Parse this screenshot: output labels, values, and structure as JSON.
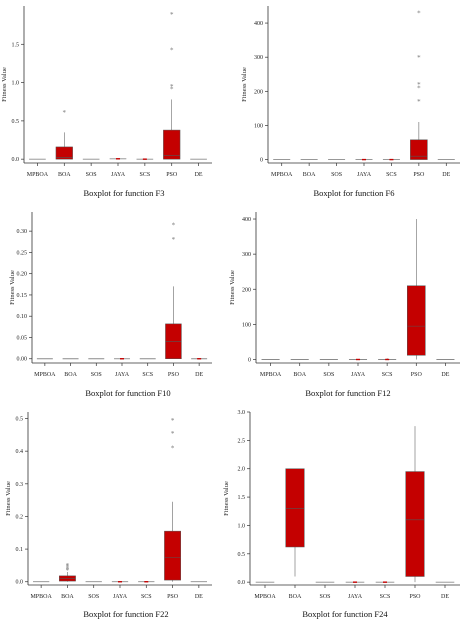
{
  "figure": {
    "categories": [
      "MPBOA",
      "BOA",
      "SOS",
      "JAYA",
      "SCS",
      "PSO",
      "DE"
    ],
    "box_color": "#c40000",
    "outlier_marker": "*"
  },
  "chart_data": [
    {
      "type": "boxplot",
      "caption": "Boxplot for function F3",
      "ylabel": "Fitness Value",
      "ylim": [
        -0.05,
        2.0
      ],
      "yticks": [
        "0.0",
        "0.5",
        "1.0",
        "1.5"
      ],
      "ytick_values": [
        0,
        0.5,
        1.0,
        1.5
      ],
      "categories": [
        "MPBOA",
        "BOA",
        "SOS",
        "JAYA",
        "SCS",
        "PSO",
        "DE"
      ],
      "boxes": [
        {
          "q1": 0,
          "median": 0,
          "q3": 0,
          "whislo": 0,
          "whishi": 0,
          "fliers": []
        },
        {
          "q1": 0.0,
          "median": 0.02,
          "q3": 0.16,
          "whislo": 0.0,
          "whishi": 0.35,
          "fliers": [
            0.61
          ]
        },
        {
          "q1": 0,
          "median": 0,
          "q3": 0,
          "whislo": 0,
          "whishi": 0,
          "fliers": []
        },
        {
          "q1": 0,
          "median": 0.005,
          "q3": 0.01,
          "whislo": 0,
          "whishi": 0.01,
          "fliers": []
        },
        {
          "q1": 0,
          "median": 0,
          "q3": 0.01,
          "whislo": 0,
          "whishi": 0.01,
          "fliers": []
        },
        {
          "q1": 0.0,
          "median": 0.05,
          "q3": 0.38,
          "whislo": 0.0,
          "whishi": 0.78,
          "fliers": [
            0.92,
            0.95,
            1.43,
            1.89
          ]
        },
        {
          "q1": 0,
          "median": 0,
          "q3": 0,
          "whislo": 0,
          "whishi": 0,
          "fliers": []
        }
      ]
    },
    {
      "type": "boxplot",
      "caption": "Boxplot for function F6",
      "ylabel": "Fitness Value",
      "ylim": [
        -10,
        450
      ],
      "yticks": [
        "0",
        "100",
        "200",
        "300",
        "400"
      ],
      "ytick_values": [
        0,
        100,
        200,
        300,
        400
      ],
      "categories": [
        "MPBOA",
        "BOA",
        "SOS",
        "JAYA",
        "SCS",
        "PSO",
        "DE"
      ],
      "boxes": [
        {
          "q1": 0,
          "median": 0,
          "q3": 0,
          "whislo": 0,
          "whishi": 0,
          "fliers": []
        },
        {
          "q1": 0,
          "median": 0,
          "q3": 0,
          "whislo": 0,
          "whishi": 0,
          "fliers": []
        },
        {
          "q1": 0,
          "median": 0,
          "q3": 0,
          "whislo": 0,
          "whishi": 0,
          "fliers": []
        },
        {
          "q1": 0,
          "median": 0,
          "q3": 1,
          "whislo": 0,
          "whishi": 1,
          "fliers": []
        },
        {
          "q1": 0,
          "median": 0,
          "q3": 1,
          "whislo": 0,
          "whishi": 1,
          "fliers": []
        },
        {
          "q1": 0,
          "median": 10,
          "q3": 58,
          "whislo": 0,
          "whishi": 110,
          "fliers": [
            170,
            210,
            220,
            300,
            430
          ]
        },
        {
          "q1": 0,
          "median": 0,
          "q3": 0,
          "whislo": 0,
          "whishi": 0,
          "fliers": []
        }
      ]
    },
    {
      "type": "boxplot",
      "caption": "Boxplot for function F10",
      "ylabel": "Fitness Value",
      "ylim": [
        -0.01,
        0.345
      ],
      "yticks": [
        "0.00",
        "0.05",
        "0.10",
        "0.15",
        "0.20",
        "0.25",
        "0.30"
      ],
      "ytick_values": [
        0,
        0.05,
        0.1,
        0.15,
        0.2,
        0.25,
        0.3
      ],
      "categories": [
        "MPBOA",
        "BOA",
        "SOS",
        "JAYA",
        "SCS",
        "PSO",
        "DE"
      ],
      "boxes": [
        {
          "q1": 0,
          "median": 0,
          "q3": 0,
          "whislo": 0,
          "whishi": 0,
          "fliers": []
        },
        {
          "q1": 0,
          "median": 0,
          "q3": 0,
          "whislo": 0,
          "whishi": 0,
          "fliers": []
        },
        {
          "q1": 0,
          "median": 0,
          "q3": 0,
          "whislo": 0,
          "whishi": 0,
          "fliers": []
        },
        {
          "q1": 0,
          "median": 0,
          "q3": 0.001,
          "whislo": 0,
          "whishi": 0.001,
          "fliers": []
        },
        {
          "q1": 0,
          "median": 0,
          "q3": 0,
          "whislo": 0,
          "whishi": 0,
          "fliers": []
        },
        {
          "q1": 0.0,
          "median": 0.04,
          "q3": 0.082,
          "whislo": 0.0,
          "whishi": 0.17,
          "fliers": [
            0.28,
            0.315
          ]
        },
        {
          "q1": 0,
          "median": 0,
          "q3": 0.001,
          "whislo": 0,
          "whishi": 0.001,
          "fliers": []
        }
      ]
    },
    {
      "type": "boxplot",
      "caption": "Boxplot for function F12",
      "ylabel": "Fitness Value",
      "ylim": [
        -10,
        420
      ],
      "yticks": [
        "0",
        "100",
        "200",
        "300",
        "400"
      ],
      "ytick_values": [
        0,
        100,
        200,
        300,
        400
      ],
      "categories": [
        "MPBOA",
        "BOA",
        "SOS",
        "JAYA",
        "SCS",
        "PSO",
        "DE"
      ],
      "boxes": [
        {
          "q1": 0,
          "median": 0,
          "q3": 0,
          "whislo": 0,
          "whishi": 0,
          "fliers": []
        },
        {
          "q1": 0,
          "median": 0,
          "q3": 0,
          "whislo": 0,
          "whishi": 0,
          "fliers": []
        },
        {
          "q1": 0,
          "median": 0,
          "q3": 0,
          "whislo": 0,
          "whishi": 0,
          "fliers": []
        },
        {
          "q1": 0,
          "median": 0,
          "q3": 1,
          "whislo": 0,
          "whishi": 1,
          "fliers": []
        },
        {
          "q1": 0,
          "median": 0,
          "q3": 2,
          "whislo": 0,
          "whishi": 4,
          "fliers": []
        },
        {
          "q1": 12,
          "median": 95,
          "q3": 210,
          "whislo": 0,
          "whishi": 400,
          "fliers": []
        },
        {
          "q1": 0,
          "median": 0,
          "q3": 0,
          "whislo": 0,
          "whishi": 0,
          "fliers": []
        }
      ]
    },
    {
      "type": "boxplot",
      "caption": "Boxplot for function F22",
      "ylabel": "Fitness Value",
      "ylim": [
        -0.01,
        0.52
      ],
      "yticks": [
        "0.0",
        "0.1",
        "0.2",
        "0.3",
        "0.4",
        "0.5"
      ],
      "ytick_values": [
        0,
        0.1,
        0.2,
        0.3,
        0.4,
        0.5
      ],
      "categories": [
        "MPBOA",
        "BOA",
        "SOS",
        "JAYA",
        "SCS",
        "PSO",
        "DE"
      ],
      "boxes": [
        {
          "q1": 0,
          "median": 0,
          "q3": 0,
          "whislo": 0,
          "whishi": 0,
          "fliers": []
        },
        {
          "q1": 0.002,
          "median": 0.01,
          "q3": 0.018,
          "whislo": 0,
          "whishi": 0.03,
          "fliers": [
            0.035,
            0.04,
            0.045,
            0.05
          ]
        },
        {
          "q1": 0,
          "median": 0,
          "q3": 0,
          "whislo": 0,
          "whishi": 0,
          "fliers": []
        },
        {
          "q1": 0,
          "median": 0,
          "q3": 0.002,
          "whislo": 0,
          "whishi": 0.002,
          "fliers": []
        },
        {
          "q1": 0,
          "median": 0,
          "q3": 0.002,
          "whislo": 0,
          "whishi": 0.002,
          "fliers": []
        },
        {
          "q1": 0.005,
          "median": 0.075,
          "q3": 0.155,
          "whislo": 0,
          "whishi": 0.245,
          "fliers": [
            0.41,
            0.455,
            0.495
          ]
        },
        {
          "q1": 0,
          "median": 0,
          "q3": 0,
          "whislo": 0,
          "whishi": 0,
          "fliers": []
        }
      ]
    },
    {
      "type": "boxplot",
      "caption": "Boxplot for function F24",
      "ylabel": "Fitness Value",
      "ylim": [
        -0.05,
        3.0
      ],
      "yticks": [
        "0.0",
        "0.5",
        "1.0",
        "1.5",
        "2.0",
        "2.5",
        "3.0"
      ],
      "ytick_values": [
        0,
        0.5,
        1.0,
        1.5,
        2.0,
        2.5,
        3.0
      ],
      "categories": [
        "MPBOA",
        "BOA",
        "SOS",
        "JAYA",
        "SCS",
        "PSO",
        "DE"
      ],
      "boxes": [
        {
          "q1": 0,
          "median": 0,
          "q3": 0,
          "whislo": 0,
          "whishi": 0,
          "fliers": []
        },
        {
          "q1": 0.62,
          "median": 1.3,
          "q3": 2.0,
          "whislo": 0.1,
          "whishi": 2.0,
          "fliers": []
        },
        {
          "q1": 0,
          "median": 0,
          "q3": 0,
          "whislo": 0,
          "whishi": 0,
          "fliers": []
        },
        {
          "q1": 0,
          "median": 0,
          "q3": 0.01,
          "whislo": 0,
          "whishi": 0.01,
          "fliers": []
        },
        {
          "q1": 0,
          "median": 0,
          "q3": 0.02,
          "whislo": 0,
          "whishi": 0.02,
          "fliers": []
        },
        {
          "q1": 0.1,
          "median": 1.1,
          "q3": 1.95,
          "whislo": 0,
          "whishi": 2.75,
          "fliers": []
        },
        {
          "q1": 0,
          "median": 0,
          "q3": 0,
          "whislo": 0,
          "whishi": 0,
          "fliers": []
        }
      ]
    }
  ]
}
